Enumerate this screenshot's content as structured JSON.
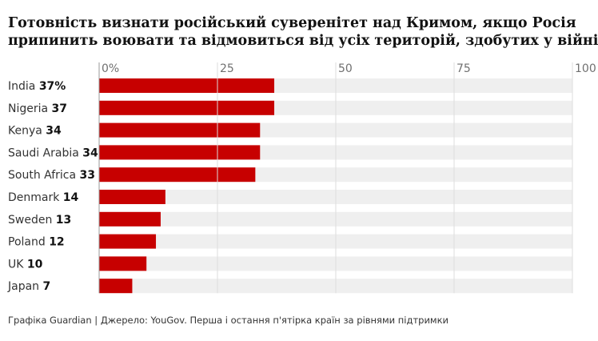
{
  "chart_data": {
    "type": "bar",
    "orientation": "horizontal",
    "title_lines": [
      "Готовність визнати російський суверенітет над Кримом, якщо Росія",
      "припинить воювати та відмовиться від усіх територій, здобутих у війні"
    ],
    "categories": [
      "India",
      "Nigeria",
      "Kenya",
      "Saudi Arabia",
      "South Africa",
      "Denmark",
      "Sweden",
      "Poland",
      "UK",
      "Japan"
    ],
    "value_labels": [
      "37%",
      "37",
      "34",
      "34",
      "33",
      "14",
      "13",
      "12",
      "10",
      "7"
    ],
    "values": [
      37,
      37,
      34,
      34,
      33,
      14,
      13,
      12,
      10,
      7
    ],
    "xlim": [
      0,
      100
    ],
    "ticks": [
      0,
      25,
      50,
      75,
      100
    ],
    "tick_labels": [
      "0%",
      "25",
      "50",
      "75",
      "100"
    ],
    "bar_color": "#c70000",
    "track_color": "#efefef",
    "source": "Графіка Guardian | Джерело: YouGov. Перша і остання п'ятірка країн за рівнями підтримки"
  }
}
